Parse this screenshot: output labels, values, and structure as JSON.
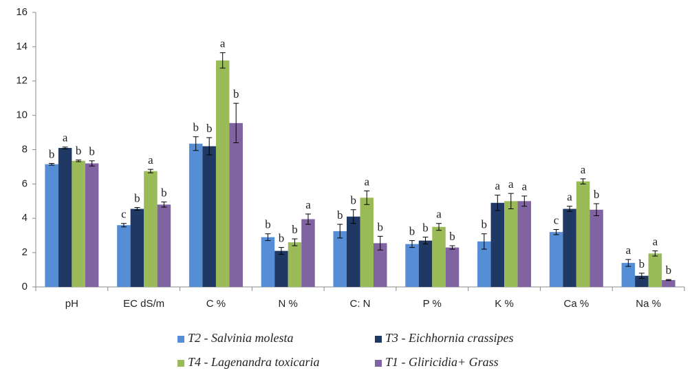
{
  "chart_data": {
    "type": "bar",
    "categories": [
      "pH",
      "EC dS/m",
      "C %",
      "N %",
      "C: N",
      "P %",
      "K %",
      "Ca %",
      "Na %"
    ],
    "series": [
      {
        "name": "T2 - Salvinia molesta",
        "color": "#558ed5",
        "values": [
          7.15,
          3.6,
          8.35,
          2.9,
          3.25,
          2.5,
          2.65,
          3.2,
          1.4
        ],
        "errors": [
          0.05,
          0.1,
          0.4,
          0.2,
          0.4,
          0.2,
          0.45,
          0.15,
          0.2
        ],
        "labels": [
          "b",
          "c",
          "b",
          "b",
          "b",
          "b",
          "b",
          "c",
          "a"
        ]
      },
      {
        "name": "T3 - Eichhornia crassipes",
        "color": "#1f3864",
        "values": [
          8.1,
          4.55,
          8.2,
          2.1,
          4.1,
          2.7,
          4.9,
          4.55,
          0.65
        ],
        "errors": [
          0.05,
          0.08,
          0.5,
          0.2,
          0.4,
          0.2,
          0.45,
          0.15,
          0.15
        ],
        "labels": [
          "a",
          "b",
          "b",
          "b",
          "b",
          "b",
          "a",
          "a",
          "b"
        ]
      },
      {
        "name": "T4 - Lagenandra toxicaria",
        "color": "#9bbb59",
        "values": [
          7.35,
          6.75,
          13.2,
          2.6,
          5.2,
          3.5,
          5.0,
          6.15,
          1.95
        ],
        "errors": [
          0.05,
          0.1,
          0.45,
          0.2,
          0.4,
          0.2,
          0.45,
          0.15,
          0.15
        ],
        "labels": [
          "b",
          "a",
          "a",
          "b",
          "a",
          "a",
          "a",
          "a",
          "a"
        ]
      },
      {
        "name": "T1 - Gliricidia+ Grass",
        "color": "#8064a2",
        "values": [
          7.2,
          4.8,
          9.55,
          3.95,
          2.55,
          2.3,
          5.0,
          4.5,
          0.4
        ],
        "errors": [
          0.15,
          0.15,
          1.15,
          0.3,
          0.4,
          0.1,
          0.3,
          0.35,
          0.03
        ],
        "labels": [
          "b",
          "b",
          "b",
          "a",
          "b",
          "b",
          "a",
          "b",
          "b"
        ]
      }
    ],
    "ylim": [
      0,
      16
    ],
    "yticks": [
      0,
      2,
      4,
      6,
      8,
      10,
      12,
      14,
      16
    ]
  }
}
